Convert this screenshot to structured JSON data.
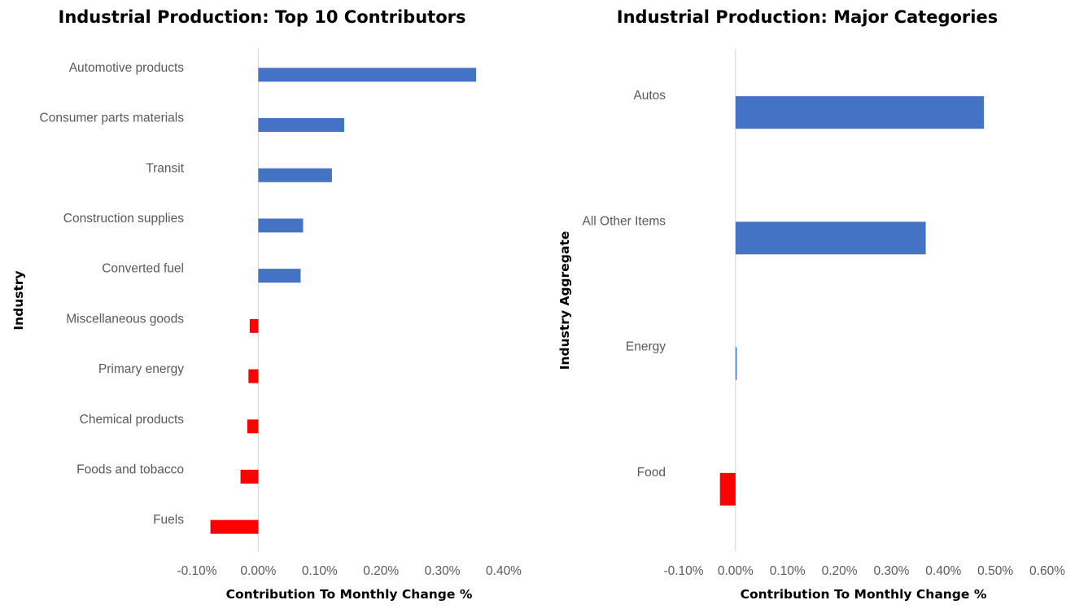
{
  "chart_data": [
    {
      "type": "bar",
      "orientation": "horizontal",
      "title": "Industrial Production: Top 10 Contributors",
      "xlabel": "Contribution To Monthly Change %",
      "ylabel": "Industry",
      "xlim": [
        -0.1,
        0.4
      ],
      "x_ticks": [
        "-0.10%",
        "0.00%",
        "0.10%",
        "0.20%",
        "0.30%",
        "0.40%"
      ],
      "categories": [
        "Automotive products",
        "Consumer parts materials",
        "Transit",
        "Construction supplies",
        "Converted fuel",
        "Miscellaneous goods",
        "Primary energy",
        "Chemical products",
        "Foods and tobacco",
        "Fuels"
      ],
      "values": [
        0.355,
        0.14,
        0.12,
        0.073,
        0.069,
        -0.014,
        -0.016,
        -0.018,
        -0.029,
        -0.078
      ],
      "grid": false,
      "colors": {
        "positive": "#4472C4",
        "negative": "#FF0000"
      }
    },
    {
      "type": "bar",
      "orientation": "horizontal",
      "title": "Industrial Production: Major Categories",
      "xlabel": "Contribution To Monthly Change %",
      "ylabel": "Industry Aggregate",
      "xlim": [
        -0.1,
        0.6
      ],
      "x_ticks": [
        "-0.10%",
        "0.00%",
        "0.10%",
        "0.20%",
        "0.30%",
        "0.40%",
        "0.50%",
        "0.60%"
      ],
      "categories": [
        "Autos",
        "All Other Items",
        "Energy",
        "Food"
      ],
      "values": [
        0.478,
        0.366,
        0.002,
        -0.03
      ],
      "grid": false,
      "colors": {
        "positive": "#4472C4",
        "negative": "#FF0000"
      }
    }
  ]
}
